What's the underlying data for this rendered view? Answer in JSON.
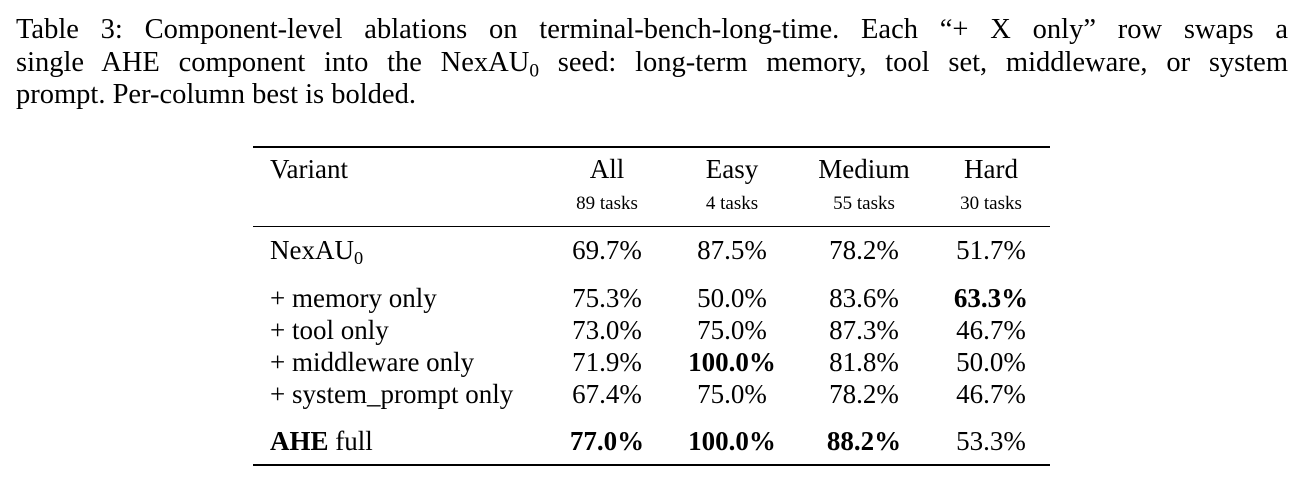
{
  "caption": {
    "line1": "Table 3: Component-level ablations on terminal-bench-long-time. Each “+ X only” row swaps a",
    "line2_pre": "single AHE component into the NexAU",
    "line2_sub": "0",
    "line2_post": " seed: long-term memory, tool set, middleware, or system",
    "line3": "prompt. Per-column best is bolded."
  },
  "table": {
    "headers": {
      "variant": "Variant",
      "all": "All",
      "easy": "Easy",
      "medium": "Medium",
      "hard": "Hard"
    },
    "subheaders": {
      "all": "89 tasks",
      "easy": "4 tasks",
      "medium": "55 tasks",
      "hard": "30 tasks"
    },
    "rows": [
      {
        "variant_main": "NexAU",
        "variant_sub": "0",
        "all": "69.7%",
        "easy": "87.5%",
        "medium": "78.2%",
        "hard": "51.7%"
      },
      {
        "variant_main": "+ memory only",
        "all": "75.3%",
        "easy": "50.0%",
        "medium": "83.6%",
        "hard": "63.3%"
      },
      {
        "variant_main": "+ tool only",
        "all": "73.0%",
        "easy": "75.0%",
        "medium": "87.3%",
        "hard": "46.7%"
      },
      {
        "variant_main": "+ middleware only",
        "all": "71.9%",
        "easy": "100.0%",
        "medium": "81.8%",
        "hard": "50.0%"
      },
      {
        "variant_main": "+ system_prompt only",
        "all": "67.4%",
        "easy": "75.0%",
        "medium": "78.2%",
        "hard": "46.7%"
      },
      {
        "variant_bold": "AHE",
        "variant_rest": " full",
        "all": "77.0%",
        "easy": "100.0%",
        "medium": "88.2%",
        "hard": "53.3%"
      }
    ]
  }
}
